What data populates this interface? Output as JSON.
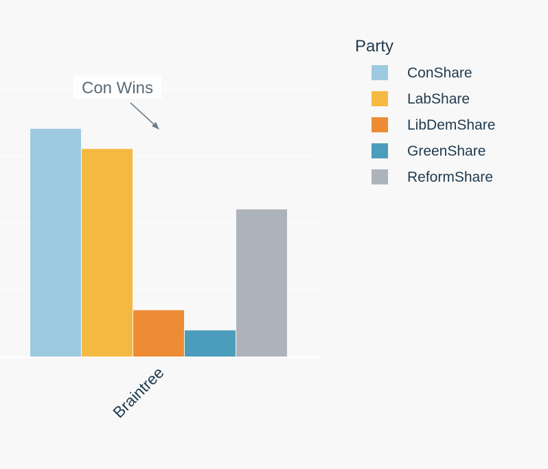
{
  "chart_data": {
    "type": "bar",
    "categories": [
      "Braintree"
    ],
    "series": [
      {
        "name": "ConShare",
        "values": [
          0.34
        ],
        "color": "#9ecae1"
      },
      {
        "name": "LabShare",
        "values": [
          0.31
        ],
        "color": "#f5b942"
      },
      {
        "name": "LibDemShare",
        "values": [
          0.07
        ],
        "color": "#ee8c35"
      },
      {
        "name": "GreenShare",
        "values": [
          0.04
        ],
        "color": "#4c9dbb"
      },
      {
        "name": "ReformShare",
        "values": [
          0.22
        ],
        "color": "#adb3bb"
      }
    ],
    "ylim": [
      0,
      0.4
    ],
    "grid": true,
    "legend": {
      "title": "Party",
      "position": "top-right"
    },
    "annotation": {
      "text": "Con Wins",
      "series": "ConShare",
      "category": "Braintree"
    }
  }
}
